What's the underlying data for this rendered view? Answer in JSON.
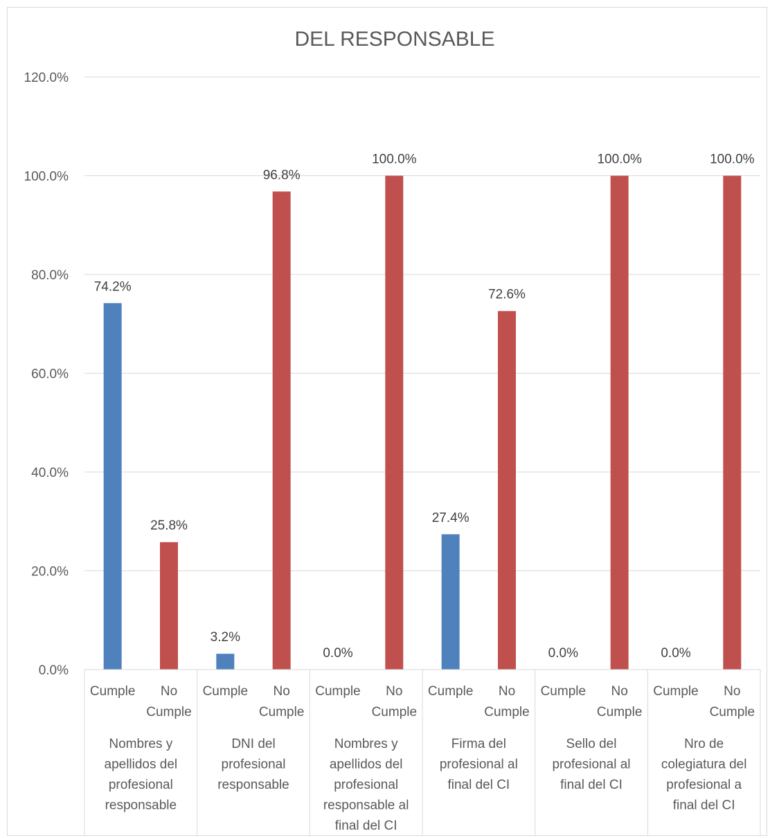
{
  "chart_data": {
    "type": "bar",
    "title": "DEL RESPONSABLE",
    "ylim": [
      0,
      120
    ],
    "yticks": [
      "0.0%",
      "20.0%",
      "40.0%",
      "60.0%",
      "80.0%",
      "100.0%",
      "120.0%"
    ],
    "grid": true,
    "legend": "none",
    "colors": {
      "Cumple": "#4f81bd",
      "No Cumple": "#c0504d"
    },
    "sub_categories": [
      "Cumple",
      "No Cumple"
    ],
    "groups": [
      {
        "label": "Nombres y apellidos del profesional responsable",
        "lines": [
          "Nombres y",
          "apellidos del",
          "profesional",
          "responsable"
        ],
        "values": [
          74.2,
          25.8
        ],
        "labels": [
          "74.2%",
          "25.8%"
        ]
      },
      {
        "label": "DNI del profesional responsable",
        "lines": [
          "DNI del",
          "profesional",
          "responsable"
        ],
        "values": [
          3.2,
          96.8
        ],
        "labels": [
          "3.2%",
          "96.8%"
        ]
      },
      {
        "label": "Nombres y apellidos del profesional responsable al final del CI",
        "lines": [
          "Nombres y",
          "apellidos del",
          "profesional",
          "responsable al",
          "final del CI"
        ],
        "values": [
          0.0,
          100.0
        ],
        "labels": [
          "0.0%",
          "100.0%"
        ]
      },
      {
        "label": "Firma del profesional al final del CI",
        "lines": [
          "Firma del",
          "profesional al",
          "final del CI"
        ],
        "values": [
          27.4,
          72.6
        ],
        "labels": [
          "27.4%",
          "72.6%"
        ]
      },
      {
        "label": "Sello del profesional al final del CI",
        "lines": [
          "Sello del",
          "profesional al",
          "final del CI"
        ],
        "values": [
          0.0,
          100.0
        ],
        "labels": [
          "0.0%",
          "100.0%"
        ]
      },
      {
        "label": "Nro de colegiatura del profesional a final del CI",
        "lines": [
          "Nro de",
          "colegiatura del",
          "profesional a",
          "final del CI"
        ],
        "values": [
          0.0,
          100.0
        ],
        "labels": [
          "0.0%",
          "100.0%"
        ]
      }
    ]
  }
}
